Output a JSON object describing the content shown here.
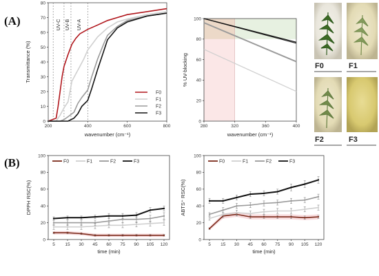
{
  "panel_labels": {
    "a": "(A)",
    "b": "(B)"
  },
  "photo_labels": [
    {
      "text": "F0",
      "color": "#c8161d"
    },
    {
      "text": "F1",
      "color": "#d6d6d6"
    },
    {
      "text": "F2",
      "color": "#9a9a9a"
    },
    {
      "text": "F3",
      "color": "#111111"
    }
  ],
  "colors": {
    "F0": "#b0151b",
    "F1": "#cfcfcf",
    "F2": "#9a9a9a",
    "F3": "#111111",
    "F0_uvplot": "#7a2a1a"
  },
  "chart_data": [
    {
      "id": "transmittance",
      "type": "line",
      "xlabel": "wavenumber (cm⁻¹)",
      "ylabel": "Transmittance (%)",
      "xlim": [
        200,
        800
      ],
      "ylim": [
        0,
        80
      ],
      "xticks": [
        200,
        400,
        600,
        800
      ],
      "yticks": [
        0,
        10,
        20,
        30,
        40,
        50,
        60,
        70,
        80
      ],
      "region_labels": [
        "UV-C",
        "UV-B",
        "UV-A"
      ],
      "region_bounds": [
        225,
        280,
        315,
        400
      ],
      "legend": [
        "F0",
        "F1",
        "F2",
        "F3"
      ],
      "series": [
        {
          "name": "F0",
          "x": [
            200,
            240,
            250,
            260,
            270,
            280,
            290,
            300,
            320,
            340,
            360,
            400,
            450,
            500,
            550,
            600,
            700,
            800
          ],
          "y": [
            0,
            2,
            10,
            20,
            30,
            37,
            41,
            45,
            52,
            56,
            59,
            62,
            65,
            68,
            70,
            72,
            74,
            76
          ]
        },
        {
          "name": "F1",
          "x": [
            200,
            240,
            260,
            280,
            300,
            310,
            320,
            340,
            360,
            380,
            400,
            450,
            500,
            550,
            600,
            700,
            800
          ],
          "y": [
            0,
            0,
            4,
            9,
            13,
            20,
            27,
            32,
            37,
            42,
            48,
            57,
            63,
            67,
            69,
            72,
            74
          ]
        },
        {
          "name": "F2",
          "x": [
            200,
            260,
            280,
            300,
            330,
            350,
            370,
            400,
            420,
            450,
            480,
            500,
            550,
            600,
            700,
            800
          ],
          "y": [
            0,
            0,
            1,
            3,
            6,
            12,
            16,
            21,
            30,
            42,
            52,
            58,
            64,
            68,
            71,
            73
          ]
        },
        {
          "name": "F3",
          "x": [
            200,
            300,
            330,
            350,
            370,
            400,
            420,
            450,
            480,
            500,
            550,
            600,
            700,
            800
          ],
          "y": [
            0,
            0,
            2,
            5,
            10,
            14,
            22,
            35,
            47,
            55,
            63,
            67,
            71,
            73
          ]
        }
      ]
    },
    {
      "id": "uv-blocking",
      "type": "line",
      "xlabel": "wavenumber (cm⁻¹)",
      "ylabel": "% UV-blocking",
      "xlim": [
        280,
        400
      ],
      "ylim": [
        0,
        100
      ],
      "xticks": [
        280,
        320,
        360,
        400
      ],
      "yticks": [
        0,
        20,
        40,
        60,
        80,
        100
      ],
      "series": [
        {
          "name": "F0",
          "x": [
            280,
            400
          ],
          "y": [
            100,
            76
          ]
        },
        {
          "name": "F1",
          "x": [
            280,
            400
          ],
          "y": [
            70,
            29
          ]
        },
        {
          "name": "F2",
          "x": [
            280,
            400
          ],
          "y": [
            96,
            58
          ]
        },
        {
          "name": "F3",
          "x": [
            280,
            400
          ],
          "y": [
            100,
            77
          ]
        }
      ]
    },
    {
      "id": "dpph",
      "type": "line",
      "xlabel": "time (min)",
      "ylabel": "DPPH RSC(%)",
      "categories": [
        "5",
        "15",
        "30",
        "45",
        "60",
        "75",
        "90",
        "105",
        "120"
      ],
      "ylim": [
        0,
        100
      ],
      "yticks": [
        0,
        20,
        40,
        60,
        80,
        100
      ],
      "legend": [
        "F0",
        "F1",
        "F2",
        "F3"
      ],
      "series": [
        {
          "name": "F0",
          "values": [
            8,
            8,
            7,
            5,
            5,
            5,
            5,
            5,
            5
          ],
          "err": [
            1,
            1,
            1,
            1,
            1,
            1,
            1,
            1,
            1
          ]
        },
        {
          "name": "F1",
          "values": [
            15,
            15,
            15,
            16,
            17,
            17,
            18,
            19,
            20
          ],
          "err": [
            3,
            3,
            3,
            3,
            3,
            3,
            3,
            3,
            3
          ]
        },
        {
          "name": "F2",
          "values": [
            20,
            20,
            20,
            20,
            22,
            24,
            24,
            25,
            28
          ],
          "err": [
            3,
            3,
            3,
            3,
            4,
            4,
            4,
            4,
            4
          ]
        },
        {
          "name": "F3",
          "values": [
            25,
            26,
            26,
            27,
            28,
            28,
            29,
            35,
            37
          ],
          "err": [
            2,
            2,
            2,
            2,
            3,
            3,
            3,
            3,
            3
          ]
        }
      ]
    },
    {
      "id": "abts",
      "type": "line",
      "xlabel": "time (min)",
      "ylabel": "ABTS⁺ RSC(%)",
      "categories": [
        "5",
        "15",
        "30",
        "45",
        "60",
        "75",
        "90",
        "105",
        "120"
      ],
      "ylim": [
        0,
        100
      ],
      "yticks": [
        0,
        20,
        40,
        60,
        80,
        100
      ],
      "legend": [
        "F0",
        "F1",
        "F2",
        "F3"
      ],
      "series": [
        {
          "name": "F0",
          "values": [
            13,
            28,
            30,
            27,
            27,
            27,
            27,
            26,
            27
          ],
          "err": [
            1,
            2,
            2,
            2,
            2,
            2,
            2,
            2,
            2
          ]
        },
        {
          "name": "F1",
          "values": [
            25,
            30,
            32,
            31,
            33,
            34,
            34,
            36,
            38
          ],
          "err": [
            2,
            2,
            3,
            3,
            3,
            3,
            3,
            3,
            3
          ]
        },
        {
          "name": "F2",
          "values": [
            30,
            35,
            40,
            41,
            43,
            44,
            46,
            47,
            51
          ],
          "err": [
            2,
            3,
            3,
            3,
            3,
            3,
            3,
            3,
            3
          ]
        },
        {
          "name": "F3",
          "values": [
            46,
            46,
            50,
            54,
            55,
            57,
            62,
            66,
            71
          ],
          "err": [
            3,
            3,
            3,
            3,
            3,
            3,
            4,
            4,
            4
          ]
        }
      ]
    }
  ]
}
